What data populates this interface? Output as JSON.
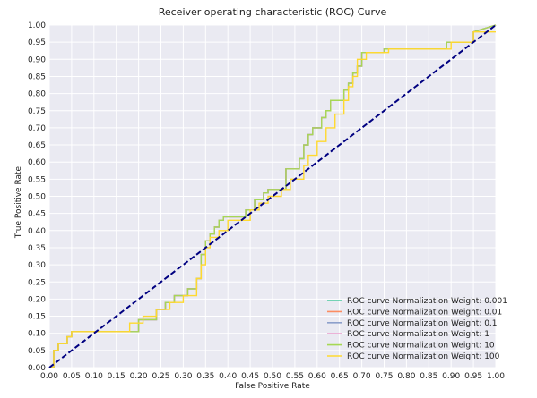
{
  "chart_data": {
    "type": "line",
    "title": "Receiver operating characteristic (ROC) Curve",
    "xlabel": "False Positive Rate",
    "ylabel": "True Positive Rate",
    "xlim": [
      0,
      1
    ],
    "ylim": [
      0,
      1
    ],
    "x_ticks": [
      "0.00",
      "0.05",
      "0.10",
      "0.15",
      "0.20",
      "0.25",
      "0.30",
      "0.35",
      "0.40",
      "0.45",
      "0.50",
      "0.55",
      "0.60",
      "0.65",
      "0.70",
      "0.75",
      "0.80",
      "0.85",
      "0.90",
      "0.95",
      "1.00"
    ],
    "y_ticks": [
      "0.00",
      "0.05",
      "0.10",
      "0.15",
      "0.20",
      "0.25",
      "0.30",
      "0.35",
      "0.40",
      "0.45",
      "0.50",
      "0.55",
      "0.60",
      "0.65",
      "0.70",
      "0.75",
      "0.80",
      "0.85",
      "0.90",
      "0.95",
      "1.00"
    ],
    "grid": true,
    "legend_position": "lower-right",
    "diagonal": {
      "x": [
        0,
        1
      ],
      "y": [
        0,
        1
      ],
      "color": "#000080",
      "style": "dashed"
    },
    "series": [
      {
        "name": "ROC curve Normalization Weight: 0.001",
        "color": "#4cc9a0",
        "x": [
          0.0,
          0.01,
          0.01,
          0.02,
          0.02,
          0.04,
          0.04,
          0.05,
          0.05,
          0.2,
          0.2,
          0.24,
          0.24,
          0.26,
          0.26,
          0.28,
          0.28,
          0.31,
          0.31,
          0.33,
          0.33,
          0.34,
          0.34,
          0.35,
          0.35,
          0.36,
          0.36,
          0.37,
          0.37,
          0.38,
          0.38,
          0.39,
          0.39,
          0.44,
          0.44,
          0.46,
          0.46,
          0.48,
          0.48,
          0.49,
          0.49,
          0.53,
          0.53,
          0.56,
          0.56,
          0.57,
          0.57,
          0.58,
          0.58,
          0.59,
          0.59,
          0.61,
          0.61,
          0.62,
          0.62,
          0.63,
          0.63,
          0.66,
          0.66,
          0.67,
          0.67,
          0.68,
          0.68,
          0.69,
          0.69,
          0.7,
          0.7,
          0.75,
          0.75,
          0.89,
          0.89,
          0.95,
          0.95,
          1.0
        ],
        "y": [
          0.0,
          0.0,
          0.05,
          0.05,
          0.07,
          0.07,
          0.09,
          0.09,
          0.105,
          0.105,
          0.14,
          0.14,
          0.17,
          0.17,
          0.19,
          0.19,
          0.21,
          0.21,
          0.23,
          0.23,
          0.26,
          0.26,
          0.33,
          0.33,
          0.37,
          0.37,
          0.39,
          0.39,
          0.41,
          0.41,
          0.43,
          0.43,
          0.44,
          0.44,
          0.46,
          0.46,
          0.49,
          0.49,
          0.51,
          0.51,
          0.52,
          0.52,
          0.58,
          0.58,
          0.61,
          0.61,
          0.65,
          0.65,
          0.68,
          0.68,
          0.7,
          0.7,
          0.73,
          0.73,
          0.75,
          0.75,
          0.78,
          0.78,
          0.81,
          0.81,
          0.83,
          0.83,
          0.86,
          0.86,
          0.88,
          0.88,
          0.92,
          0.92,
          0.93,
          0.93,
          0.95,
          0.95,
          0.98,
          1.0
        ]
      },
      {
        "name": "ROC curve Normalization Weight: 0.01",
        "color": "#fc8d62",
        "x": [
          0.0,
          0.01,
          0.01,
          0.02,
          0.02,
          0.04,
          0.04,
          0.05,
          0.05,
          0.2,
          0.2,
          0.24,
          0.24,
          0.26,
          0.26,
          0.28,
          0.28,
          0.31,
          0.31,
          0.33,
          0.33,
          0.34,
          0.34,
          0.35,
          0.35,
          0.36,
          0.36,
          0.37,
          0.37,
          0.38,
          0.38,
          0.39,
          0.39,
          0.44,
          0.44,
          0.46,
          0.46,
          0.48,
          0.48,
          0.49,
          0.49,
          0.53,
          0.53,
          0.56,
          0.56,
          0.57,
          0.57,
          0.58,
          0.58,
          0.59,
          0.59,
          0.61,
          0.61,
          0.62,
          0.62,
          0.63,
          0.63,
          0.66,
          0.66,
          0.67,
          0.67,
          0.68,
          0.68,
          0.69,
          0.69,
          0.7,
          0.7,
          0.75,
          0.75,
          0.89,
          0.89,
          0.95,
          0.95,
          1.0
        ],
        "y": [
          0.0,
          0.0,
          0.05,
          0.05,
          0.07,
          0.07,
          0.09,
          0.09,
          0.105,
          0.105,
          0.14,
          0.14,
          0.17,
          0.17,
          0.19,
          0.19,
          0.21,
          0.21,
          0.23,
          0.23,
          0.26,
          0.26,
          0.33,
          0.33,
          0.37,
          0.37,
          0.39,
          0.39,
          0.41,
          0.41,
          0.43,
          0.43,
          0.44,
          0.44,
          0.46,
          0.46,
          0.49,
          0.49,
          0.51,
          0.51,
          0.52,
          0.52,
          0.58,
          0.58,
          0.61,
          0.61,
          0.65,
          0.65,
          0.68,
          0.68,
          0.7,
          0.7,
          0.73,
          0.73,
          0.75,
          0.75,
          0.78,
          0.78,
          0.81,
          0.81,
          0.83,
          0.83,
          0.86,
          0.86,
          0.88,
          0.88,
          0.92,
          0.92,
          0.93,
          0.93,
          0.95,
          0.95,
          0.98,
          1.0
        ]
      },
      {
        "name": "ROC curve Normalization Weight: 0.1",
        "color": "#8da0cb",
        "x": [
          0.0,
          0.01,
          0.01,
          0.02,
          0.02,
          0.04,
          0.04,
          0.05,
          0.05,
          0.2,
          0.2,
          0.24,
          0.24,
          0.26,
          0.26,
          0.28,
          0.28,
          0.31,
          0.31,
          0.33,
          0.33,
          0.34,
          0.34,
          0.35,
          0.35,
          0.36,
          0.36,
          0.37,
          0.37,
          0.38,
          0.38,
          0.39,
          0.39,
          0.44,
          0.44,
          0.46,
          0.46,
          0.48,
          0.48,
          0.49,
          0.49,
          0.53,
          0.53,
          0.56,
          0.56,
          0.57,
          0.57,
          0.58,
          0.58,
          0.59,
          0.59,
          0.61,
          0.61,
          0.62,
          0.62,
          0.63,
          0.63,
          0.66,
          0.66,
          0.67,
          0.67,
          0.68,
          0.68,
          0.69,
          0.69,
          0.7,
          0.7,
          0.75,
          0.75,
          0.89,
          0.89,
          0.95,
          0.95,
          1.0
        ],
        "y": [
          0.0,
          0.0,
          0.05,
          0.05,
          0.07,
          0.07,
          0.09,
          0.09,
          0.105,
          0.105,
          0.14,
          0.14,
          0.17,
          0.17,
          0.19,
          0.19,
          0.21,
          0.21,
          0.23,
          0.23,
          0.26,
          0.26,
          0.33,
          0.33,
          0.37,
          0.37,
          0.39,
          0.39,
          0.41,
          0.41,
          0.43,
          0.43,
          0.44,
          0.44,
          0.46,
          0.46,
          0.49,
          0.49,
          0.51,
          0.51,
          0.52,
          0.52,
          0.58,
          0.58,
          0.61,
          0.61,
          0.65,
          0.65,
          0.68,
          0.68,
          0.7,
          0.7,
          0.73,
          0.73,
          0.75,
          0.75,
          0.78,
          0.78,
          0.81,
          0.81,
          0.83,
          0.83,
          0.86,
          0.86,
          0.88,
          0.88,
          0.92,
          0.92,
          0.93,
          0.93,
          0.95,
          0.95,
          0.98,
          1.0
        ]
      },
      {
        "name": "ROC curve Normalization Weight: 1",
        "color": "#e78ac3",
        "x": [
          0.0,
          0.01,
          0.01,
          0.02,
          0.02,
          0.04,
          0.04,
          0.05,
          0.05,
          0.2,
          0.2,
          0.24,
          0.24,
          0.26,
          0.26,
          0.28,
          0.28,
          0.31,
          0.31,
          0.33,
          0.33,
          0.34,
          0.34,
          0.35,
          0.35,
          0.36,
          0.36,
          0.37,
          0.37,
          0.38,
          0.38,
          0.39,
          0.39,
          0.44,
          0.44,
          0.46,
          0.46,
          0.48,
          0.48,
          0.49,
          0.49,
          0.53,
          0.53,
          0.56,
          0.56,
          0.57,
          0.57,
          0.58,
          0.58,
          0.59,
          0.59,
          0.61,
          0.61,
          0.62,
          0.62,
          0.63,
          0.63,
          0.66,
          0.66,
          0.67,
          0.67,
          0.68,
          0.68,
          0.69,
          0.69,
          0.7,
          0.7,
          0.75,
          0.75,
          0.89,
          0.89,
          0.95,
          0.95,
          1.0
        ],
        "y": [
          0.0,
          0.0,
          0.05,
          0.05,
          0.07,
          0.07,
          0.09,
          0.09,
          0.105,
          0.105,
          0.14,
          0.14,
          0.17,
          0.17,
          0.19,
          0.19,
          0.21,
          0.21,
          0.23,
          0.23,
          0.26,
          0.26,
          0.33,
          0.33,
          0.37,
          0.37,
          0.39,
          0.39,
          0.41,
          0.41,
          0.43,
          0.43,
          0.44,
          0.44,
          0.46,
          0.46,
          0.49,
          0.49,
          0.51,
          0.51,
          0.52,
          0.52,
          0.58,
          0.58,
          0.61,
          0.61,
          0.65,
          0.65,
          0.68,
          0.68,
          0.7,
          0.7,
          0.73,
          0.73,
          0.75,
          0.75,
          0.78,
          0.78,
          0.81,
          0.81,
          0.83,
          0.83,
          0.86,
          0.86,
          0.88,
          0.88,
          0.92,
          0.92,
          0.93,
          0.93,
          0.95,
          0.95,
          0.98,
          1.0
        ]
      },
      {
        "name": "ROC curve Normalization Weight: 10",
        "color": "#a6d854",
        "x": [
          0.0,
          0.01,
          0.01,
          0.02,
          0.02,
          0.04,
          0.04,
          0.05,
          0.05,
          0.2,
          0.2,
          0.24,
          0.24,
          0.26,
          0.26,
          0.28,
          0.28,
          0.31,
          0.31,
          0.33,
          0.33,
          0.34,
          0.34,
          0.35,
          0.35,
          0.36,
          0.36,
          0.37,
          0.37,
          0.38,
          0.38,
          0.39,
          0.39,
          0.44,
          0.44,
          0.46,
          0.46,
          0.48,
          0.48,
          0.49,
          0.49,
          0.53,
          0.53,
          0.56,
          0.56,
          0.57,
          0.57,
          0.58,
          0.58,
          0.59,
          0.59,
          0.61,
          0.61,
          0.62,
          0.62,
          0.63,
          0.63,
          0.66,
          0.66,
          0.67,
          0.67,
          0.68,
          0.68,
          0.69,
          0.69,
          0.7,
          0.7,
          0.75,
          0.75,
          0.89,
          0.89,
          0.95,
          0.95,
          1.0
        ],
        "y": [
          0.0,
          0.0,
          0.05,
          0.05,
          0.07,
          0.07,
          0.09,
          0.09,
          0.105,
          0.105,
          0.14,
          0.14,
          0.17,
          0.17,
          0.19,
          0.19,
          0.21,
          0.21,
          0.23,
          0.23,
          0.26,
          0.26,
          0.33,
          0.33,
          0.37,
          0.37,
          0.39,
          0.39,
          0.41,
          0.41,
          0.43,
          0.43,
          0.44,
          0.44,
          0.46,
          0.46,
          0.49,
          0.49,
          0.51,
          0.51,
          0.52,
          0.52,
          0.58,
          0.58,
          0.61,
          0.61,
          0.65,
          0.65,
          0.68,
          0.68,
          0.7,
          0.7,
          0.73,
          0.73,
          0.75,
          0.75,
          0.78,
          0.78,
          0.81,
          0.81,
          0.83,
          0.83,
          0.86,
          0.86,
          0.88,
          0.88,
          0.92,
          0.92,
          0.93,
          0.93,
          0.95,
          0.95,
          0.98,
          1.0
        ]
      },
      {
        "name": "ROC curve Normalization Weight: 100",
        "color": "#ffd92f",
        "x": [
          0.0,
          0.01,
          0.01,
          0.02,
          0.02,
          0.04,
          0.04,
          0.05,
          0.05,
          0.18,
          0.18,
          0.21,
          0.21,
          0.24,
          0.24,
          0.27,
          0.27,
          0.3,
          0.3,
          0.33,
          0.33,
          0.34,
          0.34,
          0.35,
          0.35,
          0.36,
          0.36,
          0.38,
          0.38,
          0.4,
          0.4,
          0.45,
          0.45,
          0.47,
          0.47,
          0.49,
          0.49,
          0.52,
          0.52,
          0.54,
          0.54,
          0.57,
          0.57,
          0.58,
          0.58,
          0.6,
          0.6,
          0.62,
          0.62,
          0.64,
          0.64,
          0.66,
          0.66,
          0.67,
          0.67,
          0.68,
          0.68,
          0.69,
          0.69,
          0.71,
          0.71,
          0.76,
          0.76,
          0.9,
          0.9,
          0.95,
          0.95,
          1.0
        ],
        "y": [
          0.0,
          0.0,
          0.05,
          0.05,
          0.07,
          0.07,
          0.09,
          0.09,
          0.105,
          0.105,
          0.13,
          0.13,
          0.15,
          0.15,
          0.17,
          0.17,
          0.19,
          0.19,
          0.21,
          0.21,
          0.26,
          0.26,
          0.3,
          0.3,
          0.35,
          0.35,
          0.38,
          0.38,
          0.4,
          0.4,
          0.43,
          0.43,
          0.46,
          0.46,
          0.48,
          0.48,
          0.5,
          0.5,
          0.52,
          0.52,
          0.55,
          0.55,
          0.59,
          0.59,
          0.62,
          0.62,
          0.66,
          0.66,
          0.7,
          0.7,
          0.74,
          0.74,
          0.78,
          0.78,
          0.82,
          0.82,
          0.85,
          0.85,
          0.9,
          0.9,
          0.92,
          0.92,
          0.93,
          0.93,
          0.95,
          0.95,
          0.98,
          0.98
        ]
      }
    ]
  }
}
